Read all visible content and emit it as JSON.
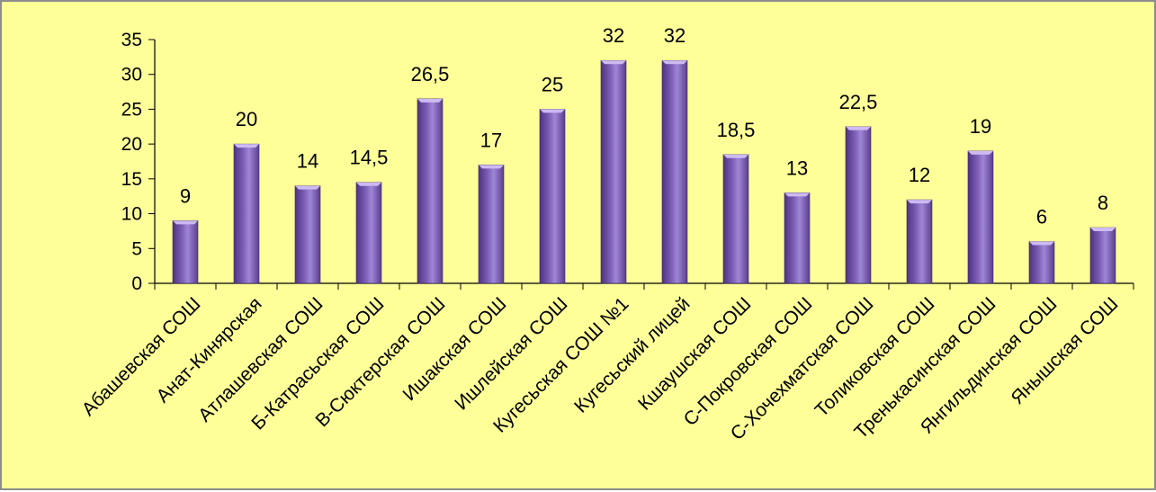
{
  "chart_data": {
    "type": "bar",
    "categories": [
      "Абашевская СОШ",
      "Анат-Кинярская",
      "Атлашевская СОШ",
      "Б-Катрасьская СОШ",
      "В-Сюктерская СОШ",
      "Ишакская СОШ",
      "Ишлейская СОШ",
      "Кугесьская СОШ №1",
      "Кугесьский лицей",
      "Кшаушская СОШ",
      "С-Покровская СОШ",
      "С-Хочехматская СОШ",
      "Толиковская СОШ",
      "Тренькасинская СОШ",
      "Янгильдинская СОШ",
      "Янышская СОШ"
    ],
    "values": [
      9,
      20,
      14,
      14.5,
      26.5,
      17,
      25,
      32,
      32,
      18.5,
      13,
      22.5,
      12,
      19,
      6,
      8
    ],
    "data_labels": [
      "9",
      "20",
      "14",
      "14,5",
      "26,5",
      "17",
      "25",
      "32",
      "32",
      "18,5",
      "13",
      "22,5",
      "12",
      "19",
      "6",
      "8"
    ],
    "y_ticks": [
      "0",
      "5",
      "10",
      "15",
      "20",
      "25",
      "30",
      "35"
    ],
    "ylim": [
      0,
      35
    ],
    "grid": false,
    "legend": "none",
    "title": "",
    "xlabel": "",
    "ylabel": ""
  },
  "colors": {
    "background": "#ffff99",
    "border": "#8c8c8c",
    "bar_dark": "#5a3d8f",
    "bar_mid": "#7d5fb6",
    "bar_light": "#b49ee0",
    "bar_top": "#c9b6ef"
  }
}
